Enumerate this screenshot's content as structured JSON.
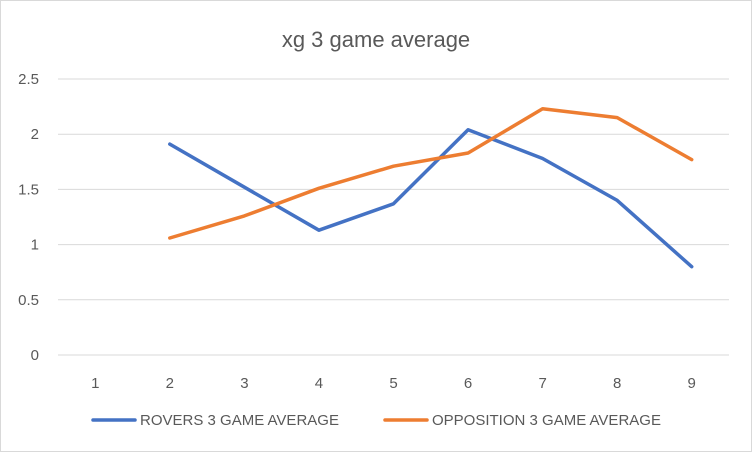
{
  "chart_data": {
    "type": "line",
    "title": "xg 3 game average",
    "xlabel": "",
    "ylabel": "",
    "categories": [
      "1",
      "2",
      "3",
      "4",
      "5",
      "6",
      "7",
      "8",
      "9"
    ],
    "ylim": [
      0,
      2.5
    ],
    "yticks": [
      0,
      0.5,
      1,
      1.5,
      2,
      2.5
    ],
    "ytick_labels": [
      "0",
      "0.5",
      "1",
      "1.5",
      "2",
      "2.5"
    ],
    "grid": true,
    "legend_position": "bottom",
    "series": [
      {
        "name": "ROVERS 3 GAME AVERAGE",
        "color": "#4472c4",
        "values": [
          null,
          1.91,
          1.52,
          1.13,
          1.37,
          2.04,
          1.78,
          1.4,
          0.8
        ]
      },
      {
        "name": "OPPOSITION 3 GAME AVERAGE",
        "color": "#ed7d31",
        "values": [
          null,
          1.06,
          1.26,
          1.51,
          1.71,
          1.83,
          2.23,
          2.15,
          1.77
        ]
      }
    ]
  }
}
